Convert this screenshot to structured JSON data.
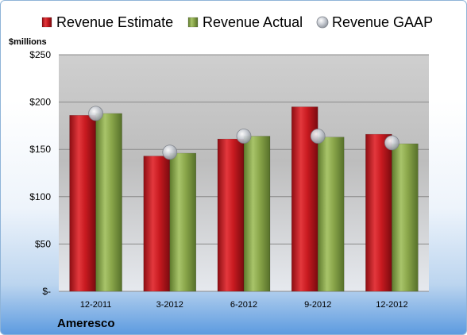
{
  "chart_data": {
    "type": "bar",
    "company": "Ameresco",
    "ylabel": "$millions",
    "ylim": [
      0,
      250
    ],
    "yticks": [
      0,
      50,
      100,
      150,
      200,
      250
    ],
    "ytick_labels": [
      "$-",
      "$50",
      "$100",
      "$150",
      "$200",
      "$250"
    ],
    "categories": [
      "12-2011",
      "3-2012",
      "6-2012",
      "9-2012",
      "12-2012"
    ],
    "legend_position": "top",
    "grid": true,
    "series": [
      {
        "name": "Revenue Estimate",
        "kind": "bar",
        "color": "#c0161c",
        "values": [
          186,
          143,
          161,
          195,
          166
        ]
      },
      {
        "name": "Revenue Actual",
        "kind": "bar",
        "color": "#8aa64a",
        "values": [
          188,
          146,
          164,
          163,
          156
        ]
      },
      {
        "name": "Revenue GAAP",
        "kind": "marker",
        "color": "#b8bcc4",
        "values": [
          188,
          147,
          164,
          164,
          157
        ]
      }
    ]
  }
}
